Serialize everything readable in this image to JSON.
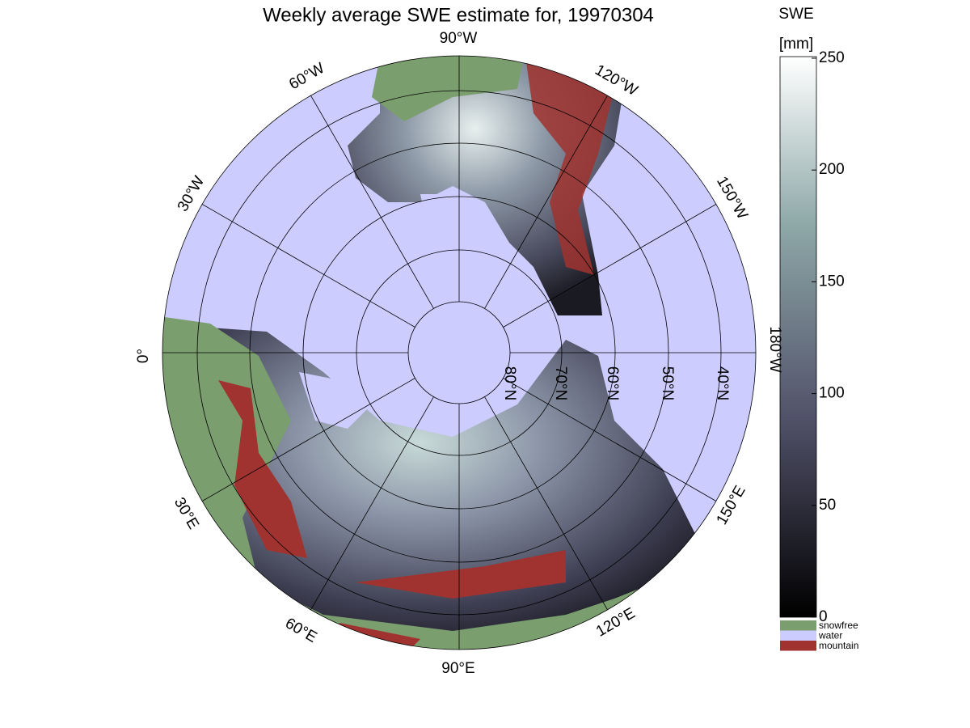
{
  "title": "Weekly average SWE estimate for, 19970304",
  "map": {
    "longitude_labels": [
      "90°W",
      "120°W",
      "150°W",
      "180°W",
      "150°E",
      "120°E",
      "90°E",
      "60°E",
      "30°E",
      "0°",
      "30°W",
      "60°W"
    ],
    "latitude_labels": [
      "80°N",
      "70°N",
      "60°N",
      "50°N",
      "40°N"
    ]
  },
  "colorbar": {
    "label": "SWE",
    "unit": "[mm]",
    "lim": [
      0,
      250
    ],
    "ticks": [
      0,
      50,
      100,
      150,
      200,
      250
    ]
  },
  "legend": [
    {
      "name": "snowfree",
      "color": "#7a9e6e"
    },
    {
      "name": "water",
      "color": "#ccccff"
    },
    {
      "name": "mountain",
      "color": "#a0332f"
    }
  ]
}
